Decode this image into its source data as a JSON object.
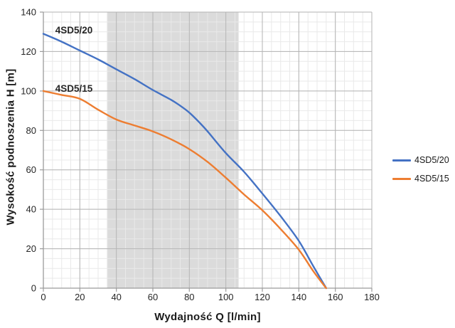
{
  "chart_data": {
    "type": "line",
    "title": "",
    "xlabel": "Wydajność Q [l/min]",
    "ylabel": "Wysokość podnoszenia H [m]",
    "xlim": [
      0,
      180
    ],
    "ylim": [
      0,
      140
    ],
    "x_ticks": [
      0,
      20,
      40,
      60,
      80,
      100,
      120,
      140,
      160,
      180
    ],
    "y_ticks": [
      0,
      20,
      40,
      60,
      80,
      100,
      120,
      140
    ],
    "x_minor_step": 5,
    "y_minor_step": 5,
    "grid": "major+minor",
    "legend_position": "right",
    "operating_band": {
      "x_start": 35,
      "x_end": 107
    },
    "colors": {
      "band": "#dbdbdb",
      "grid_minor": "#e9e9e9",
      "grid_major": "#b3b3b3",
      "axis": "#9b9b9b",
      "tick_text": "#262626"
    },
    "series": [
      {
        "name": "4SD5/20",
        "color": "#4472c4",
        "points": [
          [
            0,
            129
          ],
          [
            10,
            125
          ],
          [
            20,
            120.5
          ],
          [
            30,
            116
          ],
          [
            40,
            111
          ],
          [
            50,
            106
          ],
          [
            60,
            100.5
          ],
          [
            70,
            95.5
          ],
          [
            75,
            92.5
          ],
          [
            80,
            89
          ],
          [
            85,
            84.5
          ],
          [
            90,
            79.5
          ],
          [
            100,
            68.5
          ],
          [
            110,
            59
          ],
          [
            120,
            48
          ],
          [
            130,
            36.5
          ],
          [
            140,
            24
          ],
          [
            148,
            11
          ],
          [
            155,
            0
          ]
        ]
      },
      {
        "name": "4SD5/15",
        "color": "#ed7d31",
        "points": [
          [
            0,
            100
          ],
          [
            10,
            98
          ],
          [
            20,
            96
          ],
          [
            30,
            90.5
          ],
          [
            40,
            85.5
          ],
          [
            50,
            82.5
          ],
          [
            60,
            79.5
          ],
          [
            70,
            75.5
          ],
          [
            80,
            70.5
          ],
          [
            90,
            64
          ],
          [
            100,
            56
          ],
          [
            110,
            47.5
          ],
          [
            120,
            39.5
          ],
          [
            130,
            30
          ],
          [
            140,
            19.5
          ],
          [
            148,
            8.5
          ],
          [
            155,
            0
          ]
        ]
      }
    ],
    "annotations": [
      {
        "text": "4SD5/20",
        "x": 6.5,
        "y": 129.2
      },
      {
        "text": "4SD5/15",
        "x": 6.5,
        "y": 99.6
      }
    ]
  }
}
